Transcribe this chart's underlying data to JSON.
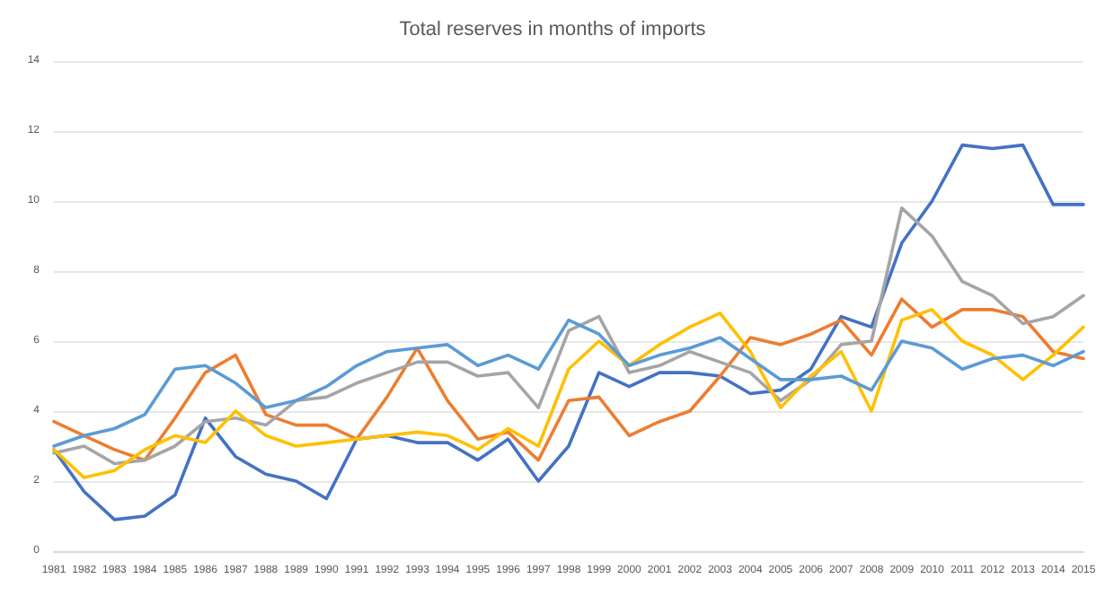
{
  "chart_data": {
    "type": "line",
    "title": "Total reserves in months of imports",
    "categories": [
      "1981",
      "1982",
      "1983",
      "1984",
      "1985",
      "1986",
      "1987",
      "1988",
      "1989",
      "1990",
      "1991",
      "1992",
      "1993",
      "1994",
      "1995",
      "1996",
      "1997",
      "1998",
      "1999",
      "2000",
      "2001",
      "2002",
      "2003",
      "2004",
      "2005",
      "2006",
      "2007",
      "2008",
      "2009",
      "2010",
      "2011",
      "2012",
      "2013",
      "2014",
      "2015"
    ],
    "series": [
      {
        "color": "#4472c4",
        "values": [
          2.9,
          1.7,
          0.9,
          1.0,
          1.6,
          3.8,
          2.7,
          2.2,
          2.0,
          1.5,
          3.2,
          3.3,
          3.1,
          3.1,
          2.6,
          3.2,
          2.0,
          3.0,
          5.1,
          4.7,
          5.1,
          5.1,
          5.0,
          4.5,
          4.6,
          5.2,
          6.7,
          6.4,
          8.8,
          10.0,
          11.6,
          11.5,
          11.6,
          9.9,
          9.9
        ]
      },
      {
        "color": "#ed7d31",
        "values": [
          3.7,
          3.3,
          2.9,
          2.6,
          3.8,
          5.1,
          5.6,
          3.9,
          3.6,
          3.6,
          3.2,
          4.4,
          5.8,
          4.3,
          3.2,
          3.4,
          2.6,
          4.3,
          4.4,
          3.3,
          3.7,
          4.0,
          5.0,
          6.1,
          5.9,
          6.2,
          6.6,
          5.6,
          7.2,
          6.4,
          6.9,
          6.9,
          6.7,
          5.7,
          5.5
        ]
      },
      {
        "color": "#a5a5a5",
        "values": [
          2.8,
          3.0,
          2.5,
          2.6,
          3.0,
          3.7,
          3.8,
          3.6,
          4.3,
          4.4,
          4.8,
          5.1,
          5.4,
          5.4,
          5.0,
          5.1,
          4.1,
          6.3,
          6.7,
          5.1,
          5.3,
          5.7,
          5.4,
          5.1,
          4.3,
          4.9,
          5.9,
          6.0,
          9.8,
          9.0,
          7.7,
          7.3,
          6.5,
          6.7,
          7.3
        ]
      },
      {
        "color": "#ffc000",
        "values": [
          2.9,
          2.1,
          2.3,
          2.9,
          3.3,
          3.1,
          4.0,
          3.3,
          3.0,
          3.1,
          3.2,
          3.3,
          3.4,
          3.3,
          2.9,
          3.5,
          3.0,
          5.2,
          6.0,
          5.3,
          5.9,
          6.4,
          6.8,
          5.7,
          4.1,
          5.0,
          5.7,
          4.0,
          6.6,
          6.9,
          6.0,
          5.6,
          4.9,
          5.6,
          6.4
        ]
      },
      {
        "color": "#5b9bd5",
        "values": [
          3.0,
          3.3,
          3.5,
          3.9,
          5.2,
          5.3,
          4.8,
          4.1,
          4.3,
          4.7,
          5.3,
          5.7,
          5.8,
          5.9,
          5.3,
          5.6,
          5.2,
          6.6,
          6.2,
          5.3,
          5.6,
          5.8,
          6.1,
          5.5,
          4.9,
          4.9,
          5.0,
          4.6,
          6.0,
          5.8,
          5.2,
          5.5,
          5.6,
          5.3,
          5.7
        ]
      }
    ],
    "ylim": [
      0,
      14
    ],
    "yticks": [
      0,
      2,
      4,
      6,
      8,
      10,
      12,
      14
    ],
    "grid": "y",
    "marker": "none",
    "line_style": "solid"
  }
}
